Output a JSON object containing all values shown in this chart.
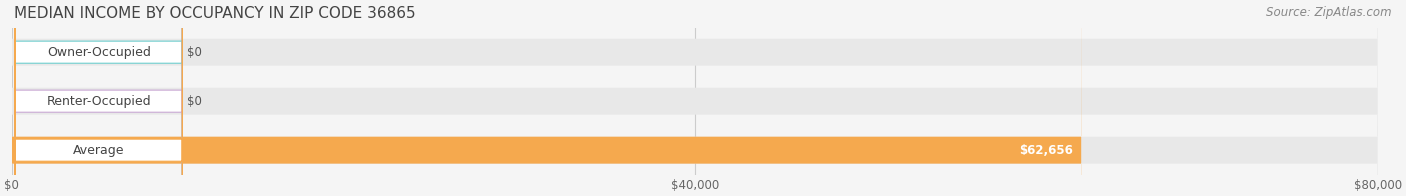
{
  "title": "MEDIAN INCOME BY OCCUPANCY IN ZIP CODE 36865",
  "source": "Source: ZipAtlas.com",
  "categories": [
    "Owner-Occupied",
    "Renter-Occupied",
    "Average"
  ],
  "values": [
    0,
    0,
    62656
  ],
  "bar_colors": [
    "#6ecece",
    "#c9a8d4",
    "#f5a94e"
  ],
  "label_colors": [
    "#6ecece",
    "#c9a8d4",
    "#f5a94e"
  ],
  "value_labels": [
    "$0",
    "$0",
    "$62,656"
  ],
  "xlim": [
    0,
    80000
  ],
  "xticks": [
    0,
    40000,
    80000
  ],
  "xtick_labels": [
    "$0",
    "$40,000",
    "$80,000"
  ],
  "bar_height": 0.55,
  "background_color": "#f5f5f5",
  "bar_bg_color": "#e8e8e8",
  "title_fontsize": 11,
  "source_fontsize": 8.5,
  "label_fontsize": 9,
  "value_fontsize": 8.5
}
